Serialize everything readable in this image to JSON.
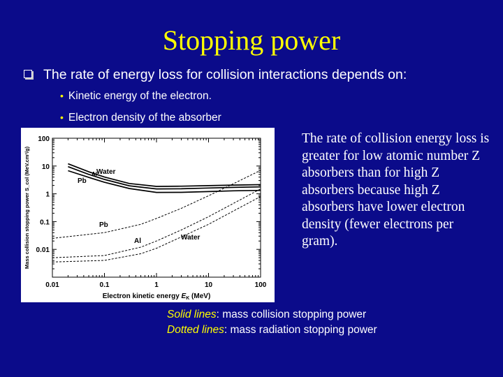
{
  "slide": {
    "title": "Stopping power",
    "bullet": "The rate of energy loss for collision interactions depends on:",
    "subbullets": [
      "Kinetic energy of the electron.",
      "Electron density of the absorber"
    ],
    "side_text": "The rate of collision energy loss is greater for low atomic number Z absorbers than for high Z absorbers because high Z absorbers have lower electron density (fewer electrons per gram).",
    "legend": [
      {
        "key": "Solid lines",
        "rest": ": mass collision stopping power"
      },
      {
        "key": "Dotted lines",
        "rest": ": mass radiation stopping power"
      }
    ],
    "colors": {
      "background": "#0b0b8a",
      "title": "#ffff00",
      "text": "#ffffff",
      "highlight": "#ffff00"
    }
  },
  "chart_data": {
    "type": "line",
    "xscale": "log",
    "yscale": "log",
    "xlim": [
      0.01,
      100
    ],
    "ylim": [
      0.001,
      100
    ],
    "xticks": [
      "0.01",
      "0.1",
      "1",
      "10",
      "100"
    ],
    "yticks": [
      "0.01",
      "0.1",
      "1",
      "10",
      "100"
    ],
    "xlabel": "Electron kinetic energy E_K (MeV)",
    "ylabel": "Mass collision stopping power S_col (MeV.cm²/g)",
    "series": [
      {
        "name": "Water",
        "style": "solid",
        "x": [
          0.02,
          0.05,
          0.1,
          0.3,
          1,
          3,
          10,
          30,
          100
        ],
        "y": [
          12.0,
          6.2,
          4.0,
          2.35,
          1.85,
          1.88,
          1.97,
          2.06,
          2.13
        ]
      },
      {
        "name": "Al",
        "style": "solid",
        "x": [
          0.02,
          0.05,
          0.1,
          0.3,
          1,
          3,
          10,
          30,
          100
        ],
        "y": [
          9.5,
          5.0,
          3.3,
          1.95,
          1.5,
          1.52,
          1.62,
          1.7,
          1.77
        ]
      },
      {
        "name": "Pb",
        "style": "solid",
        "x": [
          0.02,
          0.05,
          0.1,
          0.3,
          1,
          3,
          10,
          30,
          100
        ],
        "y": [
          6.8,
          3.9,
          2.6,
          1.55,
          1.12,
          1.13,
          1.2,
          1.28,
          1.33
        ]
      },
      {
        "name": "Pb",
        "style": "dotted",
        "x": [
          0.01,
          0.1,
          0.5,
          1,
          3,
          10,
          30,
          100
        ],
        "y": [
          0.025,
          0.04,
          0.08,
          0.13,
          0.3,
          0.85,
          2.3,
          7.0
        ]
      },
      {
        "name": "Al",
        "style": "dotted",
        "x": [
          0.01,
          0.1,
          0.5,
          1,
          3,
          10,
          30,
          100
        ],
        "y": [
          0.005,
          0.006,
          0.012,
          0.02,
          0.05,
          0.15,
          0.45,
          1.5
        ]
      },
      {
        "name": "Water",
        "style": "dotted",
        "x": [
          0.01,
          0.1,
          0.5,
          1,
          3,
          10,
          30,
          100
        ],
        "y": [
          0.0035,
          0.004,
          0.007,
          0.011,
          0.028,
          0.08,
          0.24,
          0.8
        ]
      }
    ],
    "annotations": [
      "Water",
      "Al",
      "Pb",
      "Pb",
      "Al",
      "Water"
    ]
  }
}
